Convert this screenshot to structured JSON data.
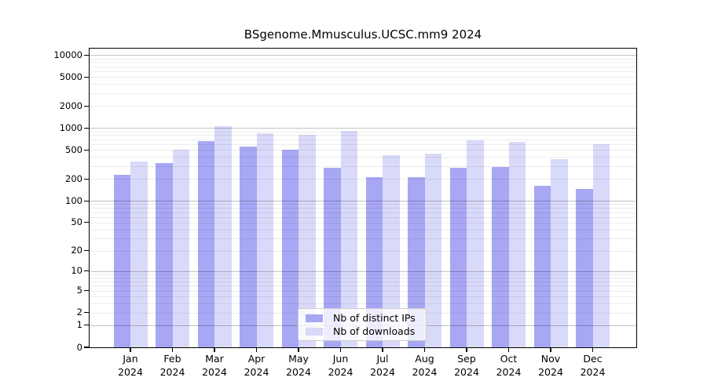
{
  "title": "BSgenome.Mmusculus.UCSC.mm9 2024",
  "chart_data": {
    "type": "bar",
    "title": "BSgenome.Mmusculus.UCSC.mm9 2024",
    "x_year": "2024",
    "categories": [
      "Jan",
      "Feb",
      "Mar",
      "Apr",
      "May",
      "Jun",
      "Jul",
      "Aug",
      "Sep",
      "Oct",
      "Nov",
      "Dec"
    ],
    "series": [
      {
        "name": "Nb of distinct IPs",
        "color": "#a7a7f4",
        "values": [
          230,
          330,
          665,
          555,
          500,
          285,
          210,
          210,
          285,
          295,
          160,
          145
        ]
      },
      {
        "name": "Nb of downloads",
        "color": "#d9d9f9",
        "values": [
          350,
          510,
          1050,
          840,
          800,
          910,
          430,
          450,
          680,
          645,
          375,
          605
        ]
      }
    ],
    "y_scale": "log10(1+v)",
    "ylim": [
      0,
      10000
    ],
    "y_ticks": [
      0,
      1,
      2,
      5,
      10,
      20,
      50,
      100,
      200,
      500,
      1000,
      2000,
      5000,
      10000
    ],
    "grid": "horizontal, log minor + major decade lines",
    "legend_position": "lower center"
  }
}
